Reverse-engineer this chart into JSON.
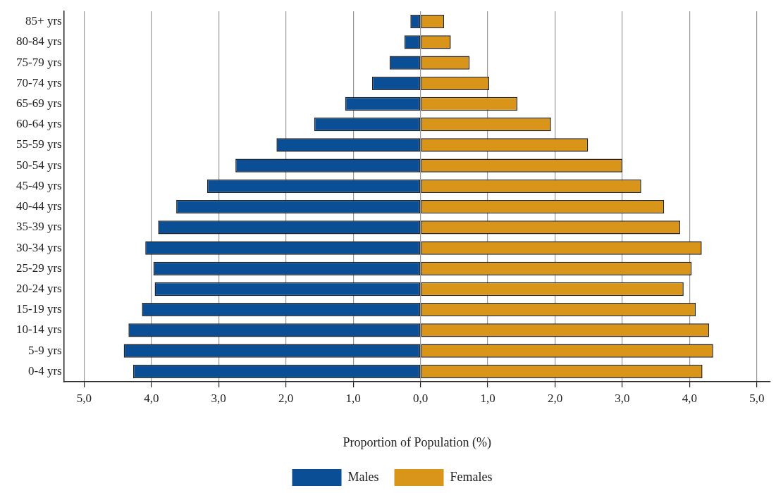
{
  "chart_data": {
    "type": "bar",
    "orientation": "horizontal",
    "stacked": true,
    "xlabel": "Proportion of Population (%)",
    "categories": [
      "85+ yrs",
      "80-84 yrs",
      "75-79 yrs",
      "70-74 yrs",
      "65-69 yrs",
      "60-64 yrs",
      "55-59 yrs",
      "50-54 yrs",
      "45-49 yrs",
      "40-44 yrs",
      "35-39 yrs",
      "30-34 yrs",
      "25-29 yrs",
      "20-24 yrs",
      "15-19 yrs",
      "10-14 yrs",
      "5-9 yrs",
      "0-4 yrs"
    ],
    "series": [
      {
        "name": "Males",
        "color": "#0a4f96",
        "values": [
          -0.15,
          -0.24,
          -0.46,
          -0.72,
          -1.12,
          -1.58,
          -2.14,
          -2.75,
          -3.17,
          -3.63,
          -3.9,
          -4.09,
          -3.97,
          -3.95,
          -4.14,
          -4.34,
          -4.41,
          -4.27
        ]
      },
      {
        "name": "Females",
        "color": "#d9951a",
        "values": [
          0.35,
          0.45,
          0.73,
          1.02,
          1.44,
          1.94,
          2.49,
          3.0,
          3.28,
          3.62,
          3.86,
          4.18,
          4.03,
          3.91,
          4.09,
          4.29,
          4.35,
          4.19
        ]
      }
    ],
    "xlim": [
      -5.3,
      5.2
    ],
    "xticks": [
      {
        "value": -5,
        "label": "5,0"
      },
      {
        "value": -4,
        "label": "4,0"
      },
      {
        "value": -3,
        "label": "3,0"
      },
      {
        "value": -2,
        "label": "2,0"
      },
      {
        "value": -1,
        "label": "1,0"
      },
      {
        "value": 0,
        "label": "0,0"
      },
      {
        "value": 1,
        "label": "1,0"
      },
      {
        "value": 2,
        "label": "2,0"
      },
      {
        "value": 3,
        "label": "3,0"
      },
      {
        "value": 4,
        "label": "4,0"
      },
      {
        "value": 5,
        "label": "5,0"
      }
    ],
    "grid": "x",
    "legend": "bottom"
  }
}
